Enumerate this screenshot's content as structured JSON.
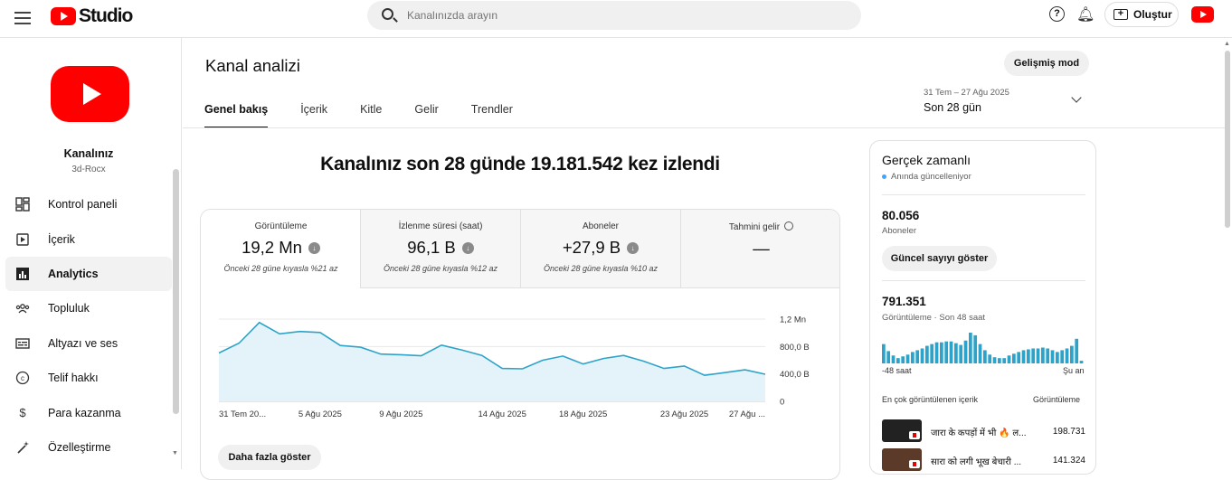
{
  "topbar": {
    "logo_text": "Studio",
    "search_placeholder": "Kanalınızda arayın",
    "create_label": "Oluştur"
  },
  "sidebar": {
    "channel_name": "Kanalınız",
    "channel_handle": "3d-Rocx",
    "items": [
      {
        "label": "Kontrol paneli",
        "icon": "dashboard-icon"
      },
      {
        "label": "İçerik",
        "icon": "content-icon"
      },
      {
        "label": "Analytics",
        "icon": "analytics-icon",
        "active": true
      },
      {
        "label": "Topluluk",
        "icon": "community-icon"
      },
      {
        "label": "Altyazı ve ses",
        "icon": "subtitles-icon"
      },
      {
        "label": "Telif hakkı",
        "icon": "copyright-icon"
      },
      {
        "label": "Para kazanma",
        "icon": "monetization-icon"
      },
      {
        "label": "Özelleştirme",
        "icon": "customization-icon"
      }
    ]
  },
  "header": {
    "title": "Kanal analizi",
    "advanced_mode": "Gelişmiş mod",
    "tabs": [
      "Genel bakış",
      "İçerik",
      "Kitle",
      "Gelir",
      "Trendler"
    ],
    "date_range": "31 Tem – 27 Ağu 2025",
    "date_label": "Son 28 gün"
  },
  "overview": {
    "headline": "Kanalınız son 28 günde 19.181.542 kez izlendi",
    "metrics": [
      {
        "label": "Görüntüleme",
        "value": "19,2 Mn",
        "compare": "Önceki 28 güne kıyasla %21 az"
      },
      {
        "label": "İzlenme süresi (saat)",
        "value": "96,1 B",
        "compare": "Önceki 28 güne kıyasla %12 az"
      },
      {
        "label": "Aboneler",
        "value": "+27,9 B",
        "compare": "Önceki 28 güne kıyasla %10 az"
      },
      {
        "label": "Tahmini gelir",
        "value": "—"
      }
    ],
    "more_button": "Daha fazla göster"
  },
  "chart_data": {
    "type": "area",
    "title": "",
    "xlabel": "",
    "ylabel": "",
    "x_ticks": [
      "31 Tem 20...",
      "5 Ağu 2025",
      "9 Ağu 2025",
      "14 Ağu 2025",
      "18 Ağu 2025",
      "23 Ağu 2025",
      "27 Ağu ..."
    ],
    "y_ticks": [
      "0",
      "400,0 B",
      "800,0 B",
      "1,2 Mn"
    ],
    "ylim": [
      0,
      1200000
    ],
    "series": [
      {
        "values": [
          705000,
          850000,
          1150000,
          985000,
          1020000,
          1005000,
          815000,
          790000,
          690000,
          680000,
          665000,
          820000,
          750000,
          670000,
          480000,
          475000,
          600000,
          660000,
          545000,
          625000,
          670000,
          585000,
          480000,
          515000,
          380000,
          420000,
          460000,
          395000
        ]
      }
    ],
    "colors": {
      "line": "#2ea3c9",
      "fill": "#e3f3f9"
    }
  },
  "realtime": {
    "title": "Gerçek zamanlı",
    "live_label": "Anında güncelleniyor",
    "subscribers": "80.056",
    "subscribers_label": "Aboneler",
    "show_count_button": "Güncel sayıyı göster",
    "views": "791.351",
    "views_label": "Görüntüleme · Son 48 saat",
    "axis_left": "-48 saat",
    "axis_right": "Şu an",
    "top_content_label": "En çok görüntülenen içerik",
    "top_content_metric": "Görüntüleme",
    "hourly_views": [
      22,
      14,
      9,
      6,
      8,
      10,
      13,
      15,
      17,
      20,
      22,
      24,
      24,
      25,
      25,
      23,
      21,
      26,
      35,
      32,
      22,
      15,
      10,
      7,
      6,
      6,
      9,
      11,
      13,
      15,
      16,
      17,
      17,
      18,
      17,
      15,
      13,
      15,
      17,
      20,
      28,
      3
    ],
    "top_content": [
      {
        "title": "जारा के कपड़ों में भी 🔥 ल...",
        "views": "198.731"
      },
      {
        "title": "सारा को लगी भूख बेचारी ...",
        "views": "141.324"
      }
    ]
  }
}
